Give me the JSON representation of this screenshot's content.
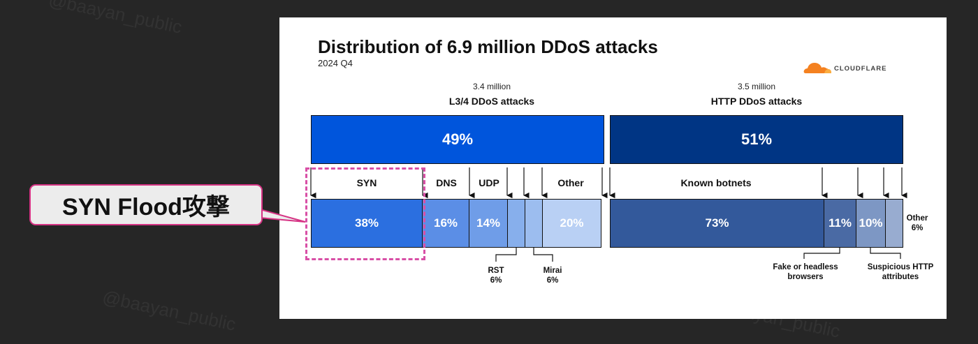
{
  "watermarks": [
    "@baayan_public",
    "@baayan_public",
    "@baayan_public"
  ],
  "callout": {
    "label": "SYN Flood攻撃"
  },
  "brand": {
    "name": "CLOUDFLARE",
    "color": "#f48120"
  },
  "colors": {
    "l34_top": "#0055dc",
    "http_top": "#003584",
    "syn": "#2b6fe0",
    "dns": "#5b8ee6",
    "udp": "#6f9de8",
    "rst": "#87afec",
    "mirai": "#9cbdef",
    "l34_other": "#b9d0f4",
    "botnets": "#33599b",
    "fake": "#4a6aa4",
    "suspicious": "#7d97c4",
    "http_other": "#98acd0",
    "highlight": "#d84fa6"
  },
  "chart_data": {
    "type": "bar",
    "title": "Distribution of 6.9 million DDoS attacks",
    "subtitle": "2024 Q4",
    "groups": [
      {
        "name": "L3/4 DDoS attacks",
        "count": "3.4 million",
        "share": 49,
        "share_label": "49%",
        "segments": [
          {
            "name": "SYN",
            "value": 38,
            "value_label": "38%"
          },
          {
            "name": "DNS",
            "value": 16,
            "value_label": "16%"
          },
          {
            "name": "UDP",
            "value": 14,
            "value_label": "14%"
          },
          {
            "name": "RST",
            "value": 6,
            "value_label": "6%"
          },
          {
            "name": "Mirai",
            "value": 6,
            "value_label": "6%"
          },
          {
            "name": "Other",
            "value": 20,
            "value_label": "20%"
          }
        ]
      },
      {
        "name": "HTTP DDoS attacks",
        "count": "3.5 million",
        "share": 51,
        "share_label": "51%",
        "segments": [
          {
            "name": "Known botnets",
            "value": 73,
            "value_label": "73%"
          },
          {
            "name": "Fake or headless browsers",
            "value": 11,
            "value_label": "11%"
          },
          {
            "name": "Suspicious HTTP attributes",
            "value": 10,
            "value_label": "10%"
          },
          {
            "name": "Other",
            "value": 6,
            "value_label": "6%"
          }
        ]
      }
    ]
  }
}
